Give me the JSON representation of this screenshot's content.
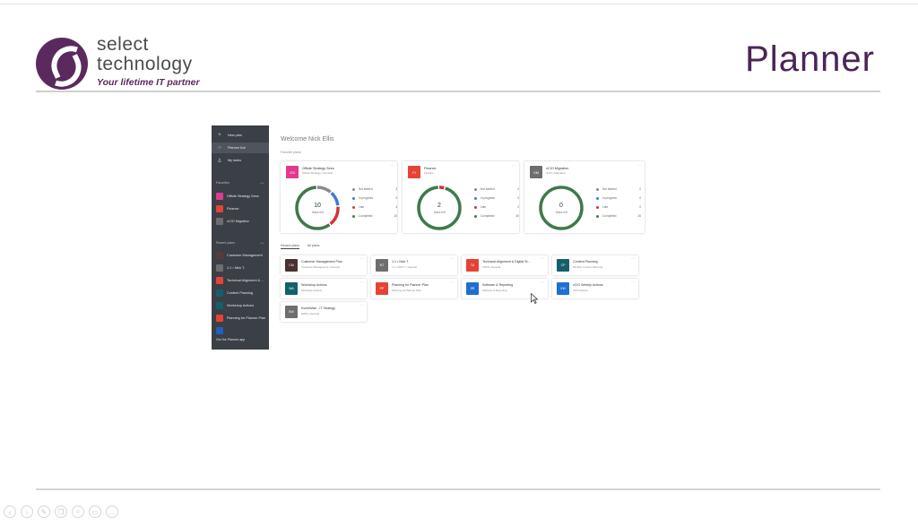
{
  "slide": {
    "logo": {
      "word1": "select",
      "word2": "technology",
      "tagline": "Your lifetime IT partner"
    },
    "title": "Planner"
  },
  "colors": {
    "brand": "#5a2a5e",
    "sidebar": "#3b3f46"
  },
  "planner": {
    "sidebar": {
      "nav": [
        {
          "icon": "plus-icon",
          "label": "New plan"
        },
        {
          "icon": "hub-icon",
          "label": "Planner hub"
        },
        {
          "icon": "person-icon",
          "label": "My tasks"
        }
      ],
      "favorites_label": "Favorites",
      "favorites": [
        {
          "label": "Offsite Strategy Sess",
          "color": "#e23a8c"
        },
        {
          "label": "Finance",
          "color": "#e64236"
        },
        {
          "label": "vCIO Migration",
          "color": "#6e6e6e"
        }
      ],
      "recent_label": "Recent plans",
      "recent": [
        {
          "label": "Customer Management",
          "color": "#5a3b3b"
        },
        {
          "label": "1:1 • Nick T.",
          "color": "#6e6e6e"
        },
        {
          "label": "Technical Alignment & ...",
          "color": "#e64236"
        },
        {
          "label": "Content Planning",
          "color": "#13606c"
        },
        {
          "label": "Workshop Actions",
          "color": "#13606c"
        },
        {
          "label": "Planning for Planner Plan",
          "color": "#e64236"
        },
        {
          "label": "",
          "color": "#1f5fbf"
        }
      ],
      "open_app": "Get the Planner app"
    },
    "welcome": "Welcome Nick Ellis",
    "favorites_heading": "Favorite plans",
    "favorite_cards": [
      {
        "name": "Offsite Strategy Sess",
        "sub": "Offsite Strategy  |  General",
        "initials": "OS",
        "color": "#e23a8c",
        "center_num": "10",
        "center_label": "Tasks left",
        "counts": {
          "not_started": "3",
          "in_progress": "3",
          "late": "4",
          "completed": "15"
        },
        "segments": [
          {
            "value": 3,
            "color": "#8a8a8a"
          },
          {
            "value": 3,
            "color": "#3a7bd5"
          },
          {
            "value": 4,
            "color": "#d13438"
          },
          {
            "value": 15,
            "color": "#3f7a4a"
          }
        ]
      },
      {
        "name": "Finance",
        "sub": "Finance",
        "initials": "FI",
        "color": "#e64236",
        "center_num": "2",
        "center_label": "Tasks left",
        "counts": {
          "not_started": "0",
          "in_progress": "0",
          "late": "2",
          "completed": "40"
        },
        "segments": [
          {
            "value": 0,
            "color": "#8a8a8a"
          },
          {
            "value": 0,
            "color": "#3a7bd5"
          },
          {
            "value": 2,
            "color": "#d13438"
          },
          {
            "value": 40,
            "color": "#3f7a4a"
          }
        ]
      },
      {
        "name": "vCIO Migration",
        "sub": "vCIO  |  Migration",
        "initials": "VM",
        "color": "#6e6e6e",
        "center_num": "0",
        "center_label": "Tasks left",
        "counts": {
          "not_started": "0",
          "in_progress": "0",
          "late": "0",
          "completed": "26"
        },
        "segments": [
          {
            "value": 0,
            "color": "#8a8a8a"
          },
          {
            "value": 0,
            "color": "#3a7bd5"
          },
          {
            "value": 0,
            "color": "#d13438"
          },
          {
            "value": 26,
            "color": "#3f7a4a"
          }
        ]
      }
    ],
    "legend_labels": {
      "not_started": "Not started",
      "in_progress": "In progress",
      "late": "Late",
      "completed": "Completed"
    },
    "tabs": {
      "recent": "Recent plans",
      "all": "All plans"
    },
    "recent_cards": [
      {
        "name": "Customer Management Plan",
        "sub": "Customer Management  |  General",
        "initials": "CM",
        "color": "#4a3030"
      },
      {
        "name": "1:1 • Nick T.",
        "sub": "1:1 • Nick T.  |  General",
        "initials": "NT",
        "color": "#6e6e6e"
      },
      {
        "name": "Technical Alignment & Digital St...",
        "sub": "TADS  |  General",
        "initials": "TA",
        "color": "#e64236"
      },
      {
        "name": "Content Planning",
        "sub": "Monthly Content Planning",
        "initials": "CP",
        "color": "#13606c"
      },
      {
        "name": "Workshop Actions",
        "sub": "Workshop Actions",
        "initials": "WA",
        "color": "#13606c"
      },
      {
        "name": "Planning for Planner Plan",
        "sub": "Planning for Planner Plan",
        "initials": "PP",
        "color": "#e64236"
      },
      {
        "name": "Software & Reporting",
        "sub": "Software & Reporting",
        "initials": "SR",
        "color": "#1f6fd1"
      },
      {
        "name": "vCIO Weekly Actions",
        "sub": "vCIO Actions",
        "initials": "VW",
        "color": "#1f6fd1"
      },
      {
        "name": "EventWise - IT Strategy",
        "sub": "EWIS  |  General",
        "initials": "EW",
        "color": "#6e6e6e"
      }
    ]
  },
  "toolbar_icons": [
    "prev-icon",
    "next-icon",
    "pen-icon",
    "copy-icon",
    "zoom-icon",
    "screen-icon",
    "more-icon"
  ]
}
